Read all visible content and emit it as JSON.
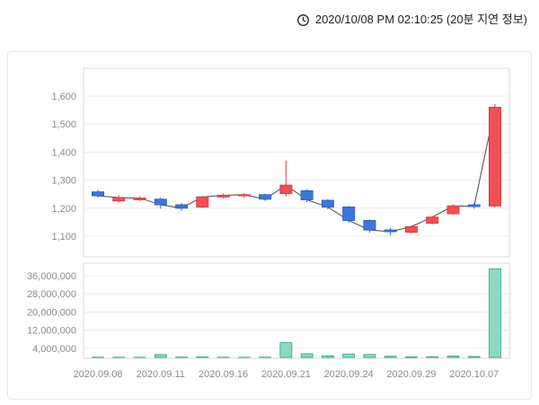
{
  "header": {
    "timestamp": "2020/10/08 PM 02:10:25 (20분 지연 정보)"
  },
  "chart_data": {
    "type": "candlestick",
    "x_ticks": [
      {
        "label": "2020.09.08",
        "candle": 0
      },
      {
        "label": "2020.09.11",
        "candle": 3
      },
      {
        "label": "2020.09.16",
        "candle": 6
      },
      {
        "label": "2020.09.21",
        "candle": 9
      },
      {
        "label": "2020.09.24",
        "candle": 12
      },
      {
        "label": "2020.09.29",
        "candle": 15
      },
      {
        "label": "2020.10.07",
        "candle": 18
      }
    ],
    "price_axis": {
      "min": 1100,
      "max": 1600,
      "ticks": [
        {
          "label": "1,600",
          "value": 1600
        },
        {
          "label": "1,500",
          "value": 1500
        },
        {
          "label": "1,400",
          "value": 1400
        },
        {
          "label": "1,300",
          "value": 1300
        },
        {
          "label": "1,200",
          "value": 1200
        },
        {
          "label": "1,100",
          "value": 1100
        }
      ]
    },
    "volume_axis": {
      "scale_max": 36000000,
      "ticks": [
        {
          "label": "36,000,000",
          "value": 36000000
        },
        {
          "label": "28,000,000",
          "value": 28000000
        },
        {
          "label": "20,000,000",
          "value": 20000000
        },
        {
          "label": "12,000,000",
          "value": 12000000
        },
        {
          "label": "4,000,000",
          "value": 4000000
        }
      ]
    },
    "candles": [
      {
        "date": "2020.09.08",
        "open": 1258,
        "high": 1266,
        "low": 1238,
        "close": 1244,
        "volume": 120000
      },
      {
        "date": "2020.09.09",
        "open": 1226,
        "high": 1246,
        "low": 1220,
        "close": 1238,
        "volume": 90000
      },
      {
        "date": "2020.09.10",
        "open": 1230,
        "high": 1242,
        "low": 1226,
        "close": 1236,
        "volume": 80000
      },
      {
        "date": "2020.09.11",
        "open": 1232,
        "high": 1238,
        "low": 1198,
        "close": 1212,
        "volume": 1250000
      },
      {
        "date": "2020.09.14",
        "open": 1212,
        "high": 1218,
        "low": 1190,
        "close": 1200,
        "volume": 150000
      },
      {
        "date": "2020.09.15",
        "open": 1204,
        "high": 1244,
        "low": 1200,
        "close": 1240,
        "volume": 200000
      },
      {
        "date": "2020.09.16",
        "open": 1240,
        "high": 1252,
        "low": 1234,
        "close": 1246,
        "volume": 100000
      },
      {
        "date": "2020.09.17",
        "open": 1246,
        "high": 1254,
        "low": 1236,
        "close": 1248,
        "volume": 80000
      },
      {
        "date": "2020.09.18",
        "open": 1248,
        "high": 1252,
        "low": 1226,
        "close": 1232,
        "volume": 120000
      },
      {
        "date": "2020.09.21",
        "open": 1252,
        "high": 1370,
        "low": 1242,
        "close": 1282,
        "volume": 6500000
      },
      {
        "date": "2020.09.22",
        "open": 1262,
        "high": 1268,
        "low": 1222,
        "close": 1230,
        "volume": 1600000
      },
      {
        "date": "2020.09.23",
        "open": 1228,
        "high": 1232,
        "low": 1196,
        "close": 1204,
        "volume": 700000
      },
      {
        "date": "2020.09.24",
        "open": 1204,
        "high": 1208,
        "low": 1148,
        "close": 1156,
        "volume": 1500000
      },
      {
        "date": "2020.09.25",
        "open": 1156,
        "high": 1160,
        "low": 1112,
        "close": 1122,
        "volume": 1300000
      },
      {
        "date": "2020.09.28",
        "open": 1122,
        "high": 1130,
        "low": 1102,
        "close": 1116,
        "volume": 500000
      },
      {
        "date": "2020.09.29",
        "open": 1114,
        "high": 1138,
        "low": 1110,
        "close": 1134,
        "volume": 250000
      },
      {
        "date": "2020.10.05",
        "open": 1146,
        "high": 1172,
        "low": 1142,
        "close": 1168,
        "volume": 300000
      },
      {
        "date": "2020.10.06",
        "open": 1180,
        "high": 1214,
        "low": 1176,
        "close": 1208,
        "volume": 600000
      },
      {
        "date": "2020.10.07",
        "open": 1212,
        "high": 1220,
        "low": 1198,
        "close": 1206,
        "volume": 400000
      },
      {
        "date": "2020.10.08",
        "open": 1208,
        "high": 1572,
        "low": 1202,
        "close": 1560,
        "volume": 39000000
      }
    ],
    "colors": {
      "up": "#f14f52",
      "up_stroke": "#e03c44",
      "down": "#3d77d8",
      "down_stroke": "#2f63c4",
      "volume_fill": "#8fd9c4",
      "volume_stroke": "#27a58c",
      "grid": "#ececec",
      "plot_border": "#d8d8d8",
      "axis_text": "#8a8a8a",
      "line": "#4a4a4a"
    }
  }
}
